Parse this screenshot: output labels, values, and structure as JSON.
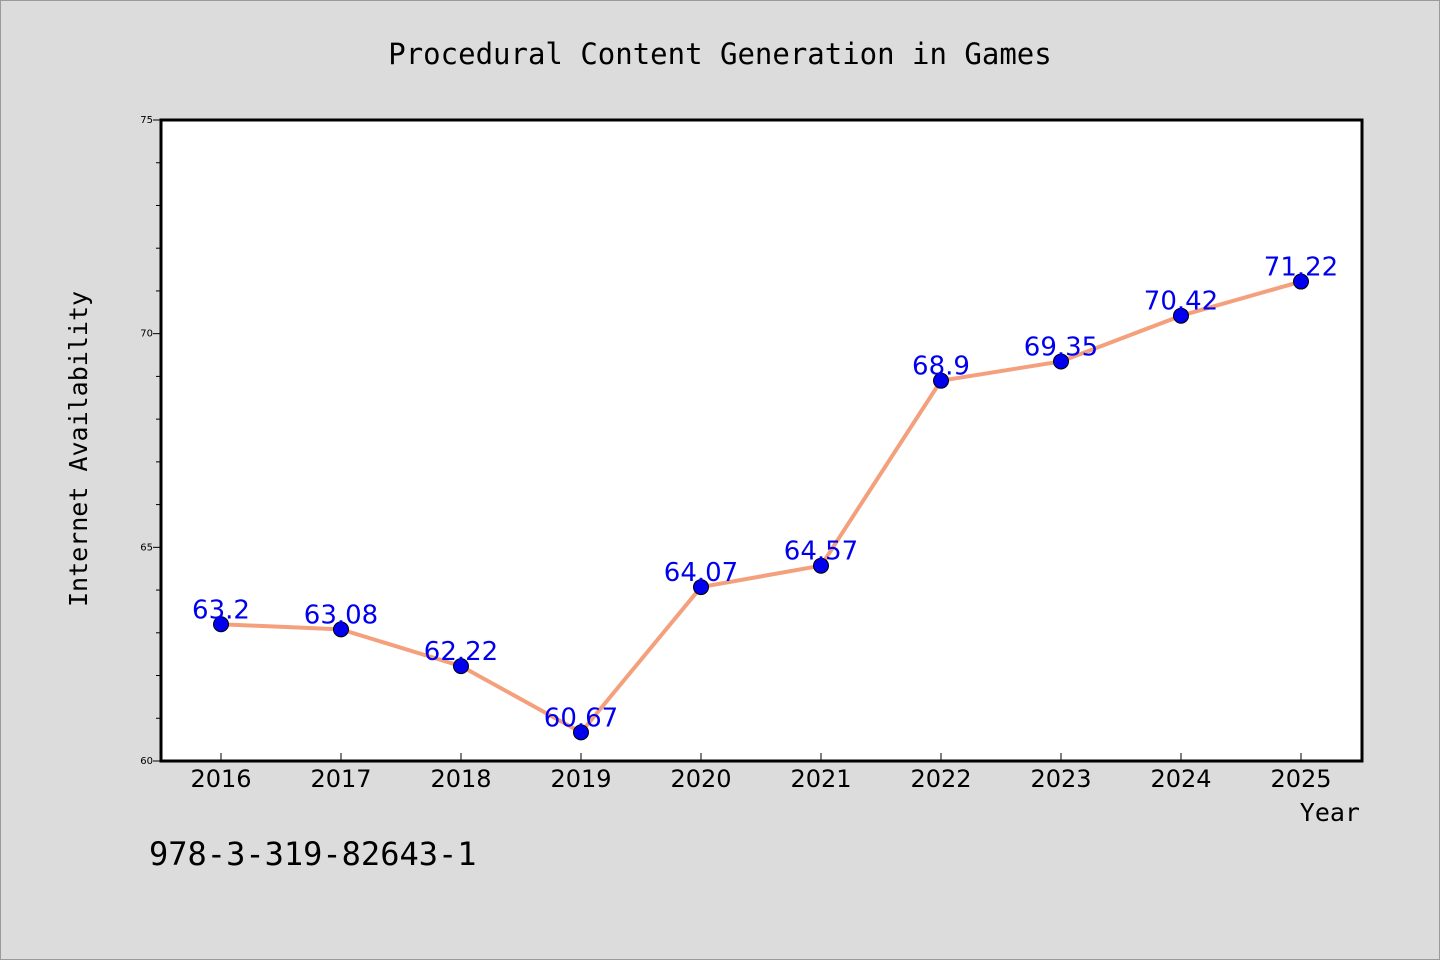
{
  "chart_data": {
    "type": "line",
    "title": "Procedural Content Generation in Games",
    "xlabel": "Year",
    "ylabel": "Internet Availability",
    "categories": [
      "2016",
      "2017",
      "2018",
      "2019",
      "2020",
      "2021",
      "2022",
      "2023",
      "2024",
      "2025"
    ],
    "series": [
      {
        "values": [
          63.2,
          63.08,
          62.22,
          60.67,
          64.07,
          64.57,
          68.9,
          69.35,
          70.42,
          71.22
        ],
        "labels": [
          "63.2",
          "63.08",
          "62.22",
          "60.67",
          "64.07",
          "64.57",
          "68.9",
          "69.35",
          "70.42",
          "71.22"
        ],
        "line_color": "#f4a07c",
        "marker_color": "#0000ee",
        "label_color": "#0000ee"
      }
    ],
    "ylim": [
      60,
      75
    ],
    "yticks": [
      "60",
      "65",
      "70",
      "75"
    ],
    "grid": false,
    "legend": "none"
  },
  "footer": {
    "code": "978-3-319-82643-1"
  },
  "colors": {
    "background": "#dcdcdc",
    "plot_area": "#ffffff",
    "axis": "#000000",
    "line": "#f4a07c",
    "marker": "#0000ee"
  }
}
